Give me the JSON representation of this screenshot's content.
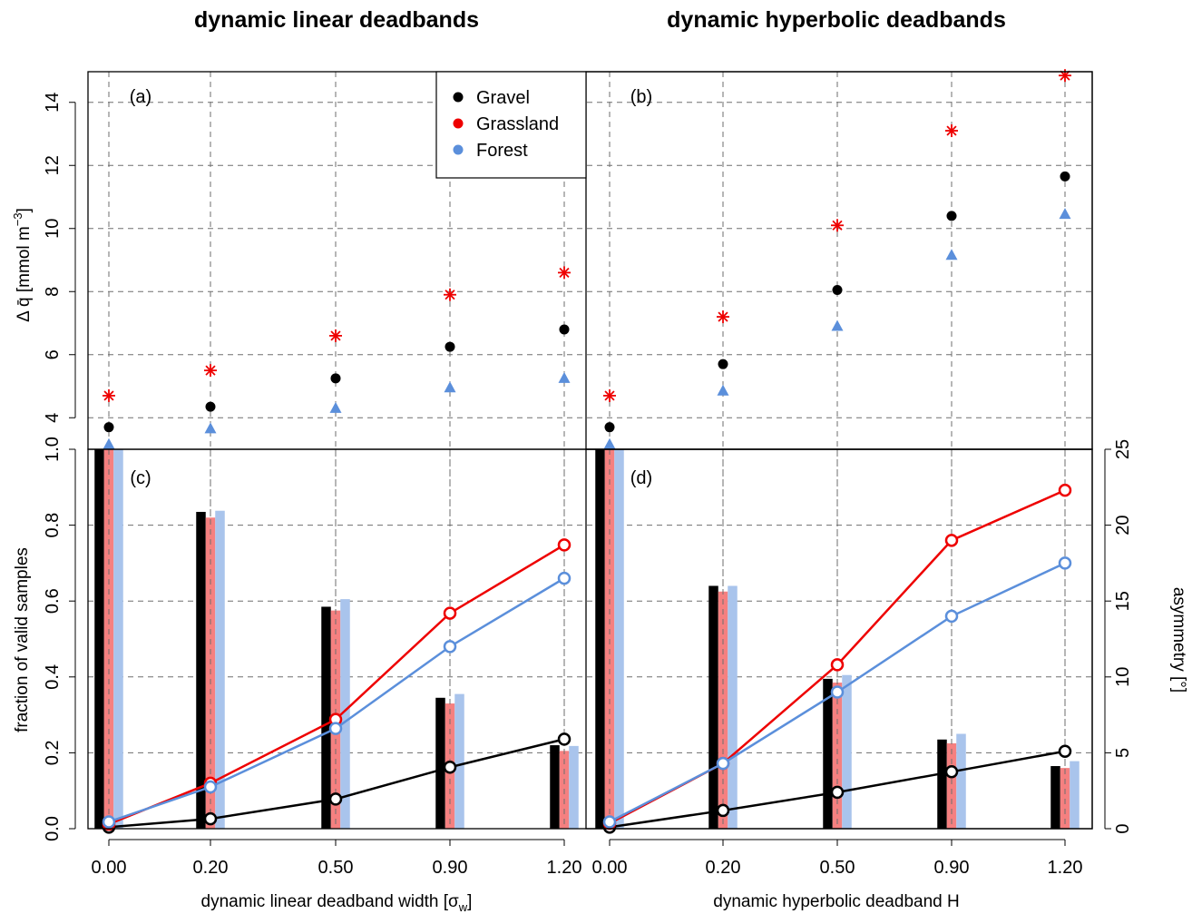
{
  "titles": {
    "left": "dynamic linear deadbands",
    "right": "dynamic hyperbolic deadbands"
  },
  "colors": {
    "Gravel": "#000000",
    "Grassland": "#ee0000",
    "Forest": "#5b8fdb",
    "GrasslandBar": "#f58080",
    "ForestBar": "#a9c4ec"
  },
  "legend": {
    "position": "top-right of panel (a)",
    "items": [
      {
        "name": "Gravel",
        "color": "#000000"
      },
      {
        "name": "Grassland",
        "color": "#ee0000"
      },
      {
        "name": "Forest",
        "color": "#5b8fdb"
      }
    ]
  },
  "axes": {
    "top_ylabel_main": "Δ q̄ [mmol m",
    "top_ylabel_sup": "−3",
    "top_ylabel_end": "]",
    "bottom_left_ylabel": "fraction of valid samples",
    "bottom_right_ylabel": "asymmetry [°]",
    "left_xlabel": "dynamic linear deadband width [σ",
    "left_xlabel_sub": "w",
    "left_xlabel_end": "]",
    "right_xlabel": "dynamic hyperbolic deadband H",
    "x_ticks_left": [
      "0.00",
      "0.20",
      "0.50",
      "0.90",
      "1.20"
    ],
    "x_ticks_right": [
      "0.00",
      "0.20",
      "0.50",
      "0.90",
      "1.20"
    ],
    "y_ticks_top": [
      "4",
      "6",
      "8",
      "10",
      "12",
      "14"
    ],
    "y_ticks_frac": [
      "0.0",
      "0.2",
      "0.4",
      "0.6",
      "0.8",
      "1.0"
    ],
    "y_ticks_asym": [
      "0",
      "5",
      "10",
      "15",
      "20",
      "25"
    ]
  },
  "panels": {
    "a": "(a)",
    "b": "(b)",
    "c": "(c)",
    "d": "(d)"
  },
  "chart_data": [
    {
      "panel": "(a)",
      "type": "scatter",
      "categories": [
        "0.00",
        "0.20",
        "0.50",
        "0.90",
        "1.20"
      ],
      "ylim": [
        3,
        15
      ],
      "grid": true,
      "series": [
        {
          "name": "Gravel",
          "marker": "circle",
          "values": [
            3.7,
            4.35,
            5.25,
            6.25,
            6.8
          ]
        },
        {
          "name": "Grassland",
          "marker": "asterisk",
          "values": [
            4.7,
            5.5,
            6.6,
            7.9,
            8.6
          ]
        },
        {
          "name": "Forest",
          "marker": "triangle",
          "values": [
            3.15,
            3.65,
            4.3,
            4.95,
            5.25
          ]
        }
      ]
    },
    {
      "panel": "(b)",
      "type": "scatter",
      "categories": [
        "0.00",
        "0.20",
        "0.50",
        "0.90",
        "1.20"
      ],
      "ylim": [
        3,
        15
      ],
      "grid": true,
      "series": [
        {
          "name": "Gravel",
          "marker": "circle",
          "values": [
            3.7,
            5.7,
            8.05,
            10.4,
            11.65
          ]
        },
        {
          "name": "Grassland",
          "marker": "asterisk",
          "values": [
            4.7,
            7.2,
            10.1,
            13.1,
            14.85
          ]
        },
        {
          "name": "Forest",
          "marker": "triangle",
          "values": [
            3.15,
            4.85,
            6.9,
            9.15,
            10.45
          ]
        }
      ]
    },
    {
      "panel": "(c)",
      "type": "bar",
      "categories": [
        "0.00",
        "0.20",
        "0.50",
        "0.90",
        "1.20"
      ],
      "ylim": [
        0,
        1
      ],
      "y2lim": [
        0,
        25
      ],
      "grid": true,
      "series": [
        {
          "name": "Gravel",
          "axis": "fraction",
          "values": [
            1.0,
            0.835,
            0.585,
            0.345,
            0.22
          ]
        },
        {
          "name": "Grassland",
          "axis": "fraction",
          "values": [
            1.0,
            0.82,
            0.575,
            0.33,
            0.205
          ]
        },
        {
          "name": "Forest",
          "axis": "fraction",
          "values": [
            1.0,
            0.838,
            0.605,
            0.355,
            0.218
          ]
        }
      ],
      "lines": [
        {
          "name": "Gravel",
          "axis": "asymmetry",
          "values": [
            0.1,
            0.65,
            1.95,
            4.05,
            5.9
          ]
        },
        {
          "name": "Grassland",
          "axis": "asymmetry",
          "values": [
            0.3,
            3.0,
            7.2,
            14.2,
            18.7
          ]
        },
        {
          "name": "Forest",
          "axis": "asymmetry",
          "values": [
            0.45,
            2.75,
            6.6,
            12.0,
            16.5
          ]
        }
      ]
    },
    {
      "panel": "(d)",
      "type": "bar",
      "categories": [
        "0.00",
        "0.20",
        "0.50",
        "0.90",
        "1.20"
      ],
      "ylim": [
        0,
        1
      ],
      "y2lim": [
        0,
        25
      ],
      "grid": true,
      "series": [
        {
          "name": "Gravel",
          "axis": "fraction",
          "values": [
            1.0,
            0.64,
            0.395,
            0.235,
            0.165
          ]
        },
        {
          "name": "Grassland",
          "axis": "fraction",
          "values": [
            1.0,
            0.625,
            0.385,
            0.225,
            0.16
          ]
        },
        {
          "name": "Forest",
          "axis": "fraction",
          "values": [
            1.0,
            0.64,
            0.405,
            0.25,
            0.178
          ]
        }
      ],
      "lines": [
        {
          "name": "Gravel",
          "axis": "asymmetry",
          "values": [
            0.1,
            1.2,
            2.4,
            3.75,
            5.1
          ]
        },
        {
          "name": "Grassland",
          "axis": "asymmetry",
          "values": [
            0.35,
            4.3,
            10.8,
            19.0,
            22.3
          ]
        },
        {
          "name": "Forest",
          "axis": "asymmetry",
          "values": [
            0.45,
            4.3,
            9.0,
            14.0,
            17.5
          ]
        }
      ]
    }
  ]
}
